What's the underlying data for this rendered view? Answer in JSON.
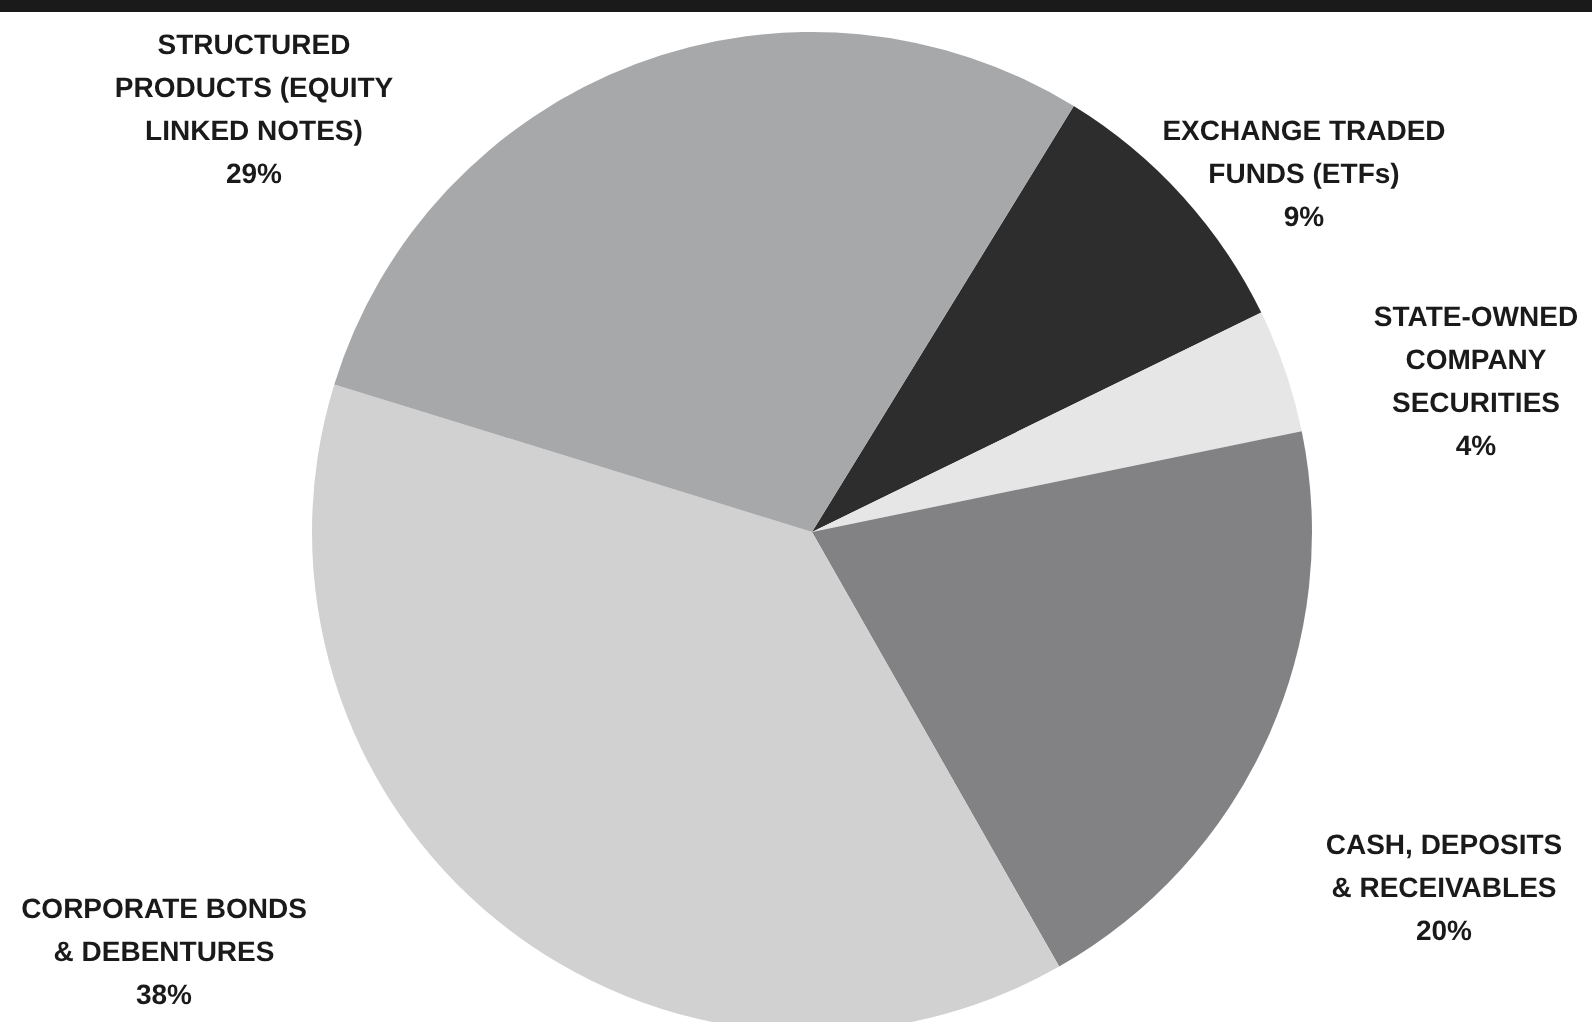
{
  "chart_data": {
    "type": "pie",
    "categories": [
      "EXCHANGE TRADED FUNDS (ETFs)",
      "STATE-OWNED COMPANY SECURITIES",
      "CASH, DEPOSITS & RECEIVABLES",
      "CORPORATE BONDS & DEBENTURES",
      "STRUCTURED PRODUCTS (EQUITY LINKED NOTES)"
    ],
    "values": [
      9,
      4,
      20,
      38,
      29
    ],
    "value_labels": [
      "9%",
      "4%",
      "20%",
      "38%",
      "29%"
    ],
    "colors": [
      "#2e2d2e",
      "#e6e6e6",
      "#828285",
      "#d1d1d2",
      "#a7a8aa"
    ]
  }
}
